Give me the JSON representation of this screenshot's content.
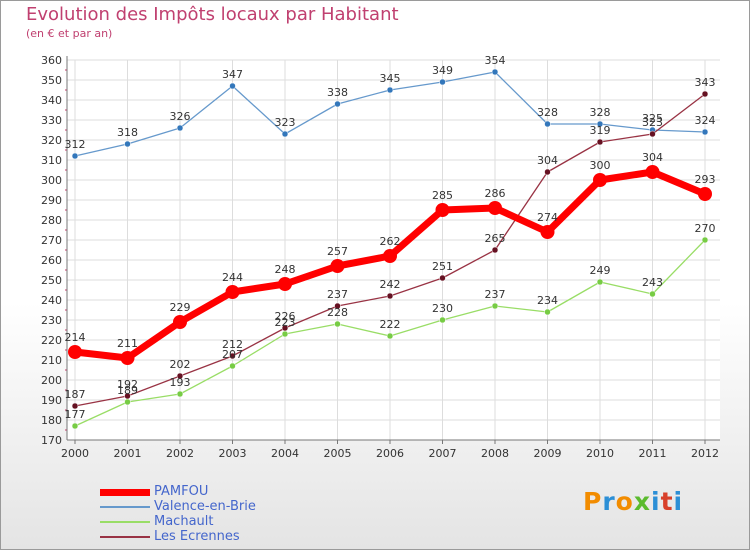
{
  "header": {
    "title": "Evolution des Impôts locaux par Habitant",
    "subtitle": "(en € et par an)"
  },
  "logo": {
    "text": "Proxiti",
    "colors": [
      "#f28c00",
      "#2c8fd6",
      "#f28c00",
      "#5bbb2e",
      "#2c8fd6",
      "#d8402a",
      "#2c8fd6"
    ]
  },
  "chart_data": {
    "type": "line",
    "title": "Evolution des Impôts locaux par Habitant",
    "subtitle": "(en € et par an)",
    "xlabel": "",
    "ylabel": "",
    "categories": [
      "2000",
      "2001",
      "2002",
      "2003",
      "2004",
      "2005",
      "2006",
      "2007",
      "2008",
      "2009",
      "2010",
      "2011",
      "2012"
    ],
    "ylim": [
      170,
      360
    ],
    "ytick_step": 10,
    "grid": true,
    "legend_position": "bottom-left",
    "series": [
      {
        "name": "PAMFOU",
        "color": "#ff0000",
        "point_color": "#ff0000",
        "width": 7,
        "marker": 7,
        "values": [
          214,
          211,
          229,
          244,
          248,
          257,
          262,
          285,
          286,
          274,
          300,
          304,
          293
        ]
      },
      {
        "name": "Valence-en-Brie",
        "color": "#6699cc",
        "point_color": "#3377bb",
        "width": 1.3,
        "marker": 3,
        "values": [
          312,
          318,
          326,
          347,
          323,
          338,
          345,
          349,
          354,
          328,
          328,
          325,
          324
        ]
      },
      {
        "name": "Machault",
        "color": "#99dd66",
        "point_color": "#77cc44",
        "width": 1.3,
        "marker": 3,
        "values": [
          177,
          189,
          193,
          207,
          223,
          228,
          222,
          230,
          237,
          234,
          249,
          243,
          270
        ]
      },
      {
        "name": "Les Ecrennes",
        "color": "#993344",
        "point_color": "#661122",
        "width": 1.3,
        "marker": 3,
        "values": [
          187,
          192,
          202,
          212,
          226,
          237,
          242,
          251,
          265,
          304,
          319,
          323,
          343
        ]
      }
    ]
  }
}
